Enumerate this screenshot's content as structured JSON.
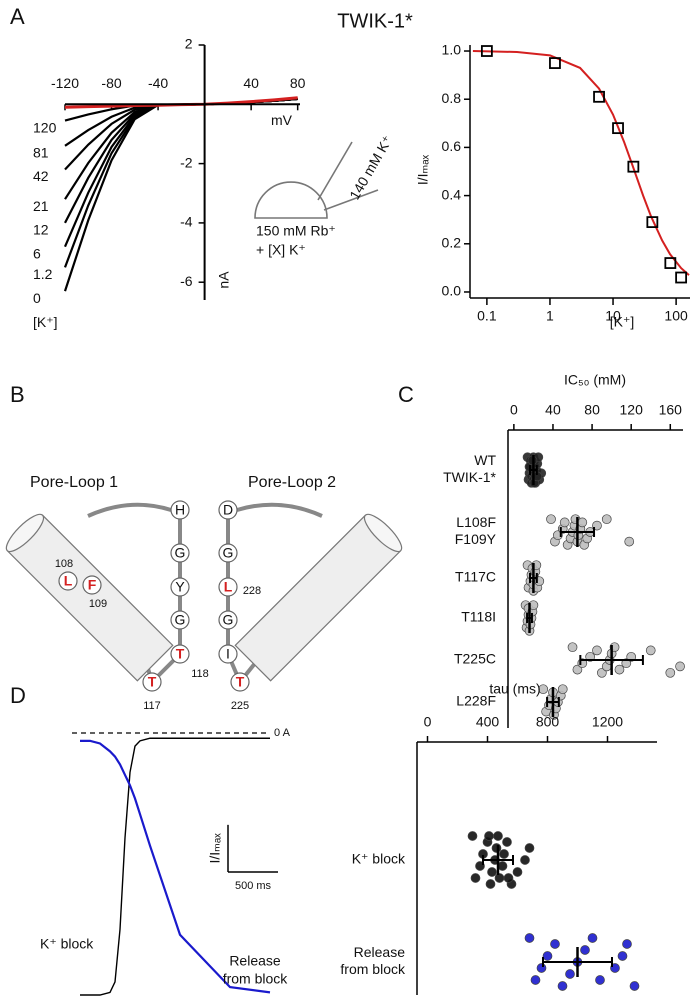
{
  "chart_data": [
    {
      "panel": "A",
      "type": "line",
      "title": "TWIK-1*",
      "xlabel": "mV",
      "ylabel": "nA",
      "legend_title": "[K⁺]",
      "annotations": [
        "140 mM K⁺",
        "150 mM Rb⁺",
        "+ [X] K⁺"
      ],
      "x": [
        -120,
        -100,
        -80,
        -60,
        -40,
        -20,
        0,
        20,
        40,
        60,
        80
      ],
      "series": [
        {
          "name": "120",
          "color": "#000000",
          "values": [
            -0.55,
            -0.34,
            -0.17,
            -0.04,
            -0.02,
            -0.01,
            0,
            0.03,
            0.07,
            0.12,
            0.18
          ]
        },
        {
          "name": "81",
          "color": "#000000",
          "values": [
            -1.4,
            -0.87,
            -0.42,
            -0.11,
            -0.02,
            -0.01,
            0,
            0.03,
            0.07,
            0.12,
            0.18
          ]
        },
        {
          "name": "42",
          "color": "#000000",
          "values": [
            -2.2,
            -1.36,
            -0.66,
            -0.18,
            -0.02,
            -0.01,
            0,
            0.03,
            0.07,
            0.12,
            0.18
          ]
        },
        {
          "name": "21",
          "color": "#000000",
          "values": [
            -3.2,
            -1.98,
            -0.96,
            -0.26,
            -0.02,
            -0.01,
            0,
            0.03,
            0.07,
            0.12,
            0.18
          ]
        },
        {
          "name": "12",
          "color": "#000000",
          "values": [
            -4.0,
            -2.48,
            -1.2,
            -0.32,
            -0.02,
            -0.01,
            0,
            0.03,
            0.07,
            0.12,
            0.18
          ]
        },
        {
          "name": "6",
          "color": "#000000",
          "values": [
            -4.8,
            -2.98,
            -1.44,
            -0.38,
            -0.02,
            -0.01,
            0,
            0.03,
            0.07,
            0.12,
            0.18
          ]
        },
        {
          "name": "1.2",
          "color": "#000000",
          "values": [
            -5.5,
            -3.41,
            -1.65,
            -0.44,
            -0.02,
            -0.01,
            0,
            0.03,
            0.07,
            0.12,
            0.18
          ]
        },
        {
          "name": "0",
          "color": "#000000",
          "values": [
            -6.3,
            -3.91,
            -1.89,
            -0.5,
            -0.02,
            -0.01,
            0,
            0.03,
            0.07,
            0.12,
            0.18
          ]
        },
        {
          "color": "#d42020",
          "values": [
            -0.1,
            -0.08,
            -0.06,
            -0.04,
            -0.03,
            -0.01,
            0,
            0.04,
            0.09,
            0.15,
            0.22
          ]
        }
      ],
      "xlim": [
        -120,
        82
      ],
      "ylim": [
        -6.6,
        2
      ],
      "xticks": [
        -120,
        -80,
        -40,
        40,
        80
      ],
      "yticks": [
        2,
        -2,
        -4,
        -6
      ]
    },
    {
      "type": "scatter",
      "xlabel": "[K⁺]",
      "ylabel": "I/Iₘₐₓ",
      "log_x": true,
      "marker": "square",
      "color": "#000000",
      "x": [
        0.1,
        1.2,
        6,
        12,
        21,
        42,
        81,
        120
      ],
      "values": [
        1.0,
        0.95,
        0.81,
        0.68,
        0.52,
        0.29,
        0.12,
        0.06
      ],
      "fit": {
        "color": "#d42020",
        "x": [
          0.06,
          0.3,
          1,
          3,
          6,
          10,
          15,
          20,
          30,
          40,
          60,
          80,
          120,
          160
        ],
        "values": [
          1.0,
          0.996,
          0.982,
          0.93,
          0.844,
          0.736,
          0.622,
          0.531,
          0.4,
          0.314,
          0.214,
          0.157,
          0.099,
          0.07
        ]
      },
      "xlim": [
        0.054,
        166
      ],
      "ylim": [
        -0.025,
        1.025
      ],
      "xticks": [
        0.1,
        1,
        10,
        100
      ],
      "yticks": [
        {
          "value": 0,
          "label": "0.0"
        },
        0.2,
        0.4,
        0.6,
        0.8,
        {
          "value": 1,
          "label": "1.0"
        }
      ]
    },
    {
      "panel": "C",
      "type": "dot",
      "xlabel": "IC₅₀ (mM)",
      "categories": [
        [
          "WT",
          "TWIK-1*"
        ],
        [
          "L108F",
          "F109Y"
        ],
        [
          "T117C"
        ],
        [
          "T118I"
        ],
        [
          "T225C"
        ],
        [
          "L228F"
        ]
      ],
      "points": [
        [
          14,
          15,
          16,
          17,
          17,
          18,
          18,
          19,
          19,
          20,
          20,
          20,
          21,
          21,
          22,
          22,
          23,
          24,
          25,
          26,
          28,
          16,
          19,
          21,
          24
        ],
        [
          38,
          42,
          45,
          50,
          52,
          55,
          58,
          60,
          62,
          63,
          65,
          66,
          68,
          70,
          72,
          75,
          78,
          85,
          95,
          118
        ],
        [
          14,
          15,
          17,
          18,
          19,
          20,
          20,
          21,
          22,
          23,
          24,
          26
        ],
        [
          12,
          13,
          14,
          15,
          15,
          16,
          17,
          18,
          19,
          20
        ],
        [
          60,
          65,
          70,
          78,
          85,
          90,
          95,
          98,
          100,
          103,
          108,
          115,
          120,
          140,
          160,
          170
        ],
        [
          30,
          33,
          36,
          38,
          40,
          41,
          43,
          45,
          48,
          50
        ]
      ],
      "mean": [
        20,
        65,
        20,
        16,
        100,
        40
      ],
      "sd": [
        3.5,
        17,
        3.5,
        2.5,
        32,
        6
      ],
      "colors": [
        "#222222",
        "#bdbdbd",
        "#bdbdbd",
        "#bdbdbd",
        "#bdbdbd",
        "#bdbdbd"
      ],
      "xlim": [
        -6,
        173
      ],
      "xticks": [
        0,
        40,
        80,
        120,
        160
      ]
    },
    {
      "panel": "D",
      "type": "trace",
      "x": [
        0,
        100,
        200,
        300,
        350,
        400,
        450,
        500,
        550,
        600,
        700,
        1000,
        1500,
        1900
      ],
      "series": [
        {
          "color": "#000000",
          "values": [
            -1,
            -1,
            -1,
            -0.99,
            -0.95,
            -0.75,
            -0.4,
            -0.15,
            -0.05,
            -0.03,
            -0.02,
            -0.02,
            -0.02,
            -0.02
          ]
        },
        {
          "color": "#1a1acc",
          "values": [
            -0.03,
            -0.03,
            -0.04,
            -0.07,
            -0.09,
            -0.12,
            -0.16,
            -0.2,
            -0.25,
            -0.31,
            -0.43,
            -0.77,
            -0.97,
            -0.99
          ]
        }
      ],
      "series_labels": [
        [
          "K⁺ block"
        ],
        [
          "Release",
          "from block"
        ]
      ],
      "reference": {
        "value": 0,
        "label": "0 A"
      },
      "scalebar": {
        "x_value": 500,
        "x_label": "500 ms",
        "y_value": 0.18,
        "y_label": "I/Iₘₐₓ"
      },
      "xlim": [
        0,
        1900
      ],
      "ylim": [
        -1,
        0
      ]
    },
    {
      "type": "dot",
      "xlabel": "tau (ms)",
      "categories": [
        [
          "K⁺ block"
        ],
        [
          "Release",
          "from block"
        ]
      ],
      "category_colors": [
        "#000000",
        "#1a1acc"
      ],
      "points": [
        [
          300,
          320,
          350,
          370,
          400,
          420,
          430,
          450,
          460,
          470,
          480,
          500,
          510,
          530,
          560,
          600,
          650,
          680,
          410,
          540
        ],
        [
          680,
          720,
          760,
          800,
          850,
          900,
          950,
          1000,
          1050,
          1100,
          1150,
          1250,
          1300,
          1330,
          1380
        ]
      ],
      "mean": [
        470,
        1000
      ],
      "sd": [
        100,
        230
      ],
      "colors": [
        "#111111",
        "#1a1acc"
      ],
      "xlim": [
        -70,
        1530
      ],
      "xticks": [
        0,
        400,
        800,
        1200
      ]
    }
  ],
  "diagram": {
    "panel": "B",
    "loop_labels": [
      "Pore-Loop 1",
      "Pore-Loop 2"
    ],
    "loop1_residues": [
      "H",
      "G",
      "Y",
      "G",
      "T",
      "T"
    ],
    "loop1_helix_residues": [
      "L",
      "F"
    ],
    "loop1_numbers": [
      "108",
      "109",
      "118",
      "117"
    ],
    "loop2_residues": [
      "D",
      "G",
      "L",
      "G",
      "I",
      "T"
    ],
    "loop2_numbers": [
      "228",
      "225"
    ]
  }
}
